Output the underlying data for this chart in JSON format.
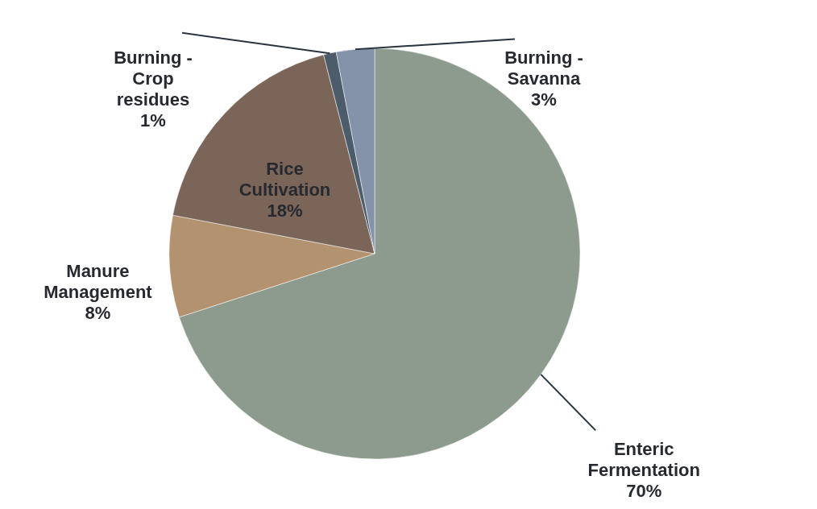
{
  "chart_data": {
    "type": "pie",
    "categories": [
      "Enteric\nFermentation",
      "Manure\nManagement",
      "Rice\nCultivation",
      "Burning -\nCrop\nresidues",
      "Burning -\nSavanna"
    ],
    "values": [
      70,
      8,
      18,
      1,
      3
    ],
    "value_labels": [
      "70%",
      "8%",
      "18%",
      "1%",
      "3%"
    ],
    "colors": [
      "#8c9b8e",
      "#b39270",
      "#7b6559",
      "#4d5c6b",
      "#8492aa"
    ]
  }
}
